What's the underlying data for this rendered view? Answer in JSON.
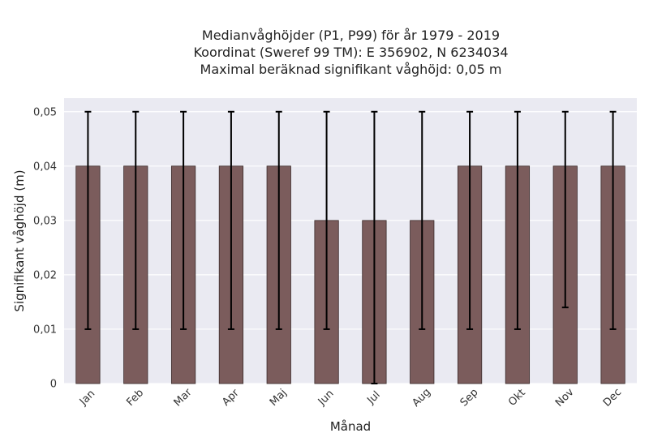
{
  "chart_data": {
    "type": "bar",
    "title_lines": [
      "Medianvåghöjder (P1, P99) för år 1979 - 2019",
      "Koordinat (Sweref 99 TM): E 356902, N 6234034",
      "Maximal beräknad signifikant våghöjd: 0,05 m"
    ],
    "xlabel": "Månad",
    "ylabel": "Signifikant våghöjd (m)",
    "categories": [
      "Jan",
      "Feb",
      "Mar",
      "Apr",
      "Maj",
      "Jun",
      "Jul",
      "Aug",
      "Sep",
      "Okt",
      "Nov",
      "Dec"
    ],
    "values": [
      0.04,
      0.04,
      0.04,
      0.04,
      0.04,
      0.03,
      0.03,
      0.03,
      0.04,
      0.04,
      0.04,
      0.04
    ],
    "error_low": [
      0.01,
      0.01,
      0.01,
      0.01,
      0.01,
      0.01,
      0.0,
      0.01,
      0.01,
      0.01,
      0.014,
      0.01
    ],
    "error_high": [
      0.05,
      0.05,
      0.05,
      0.05,
      0.05,
      0.05,
      0.05,
      0.05,
      0.05,
      0.05,
      0.05,
      0.05
    ],
    "ylim": [
      0,
      0.0525
    ],
    "yticks": [
      0,
      0.01,
      0.02,
      0.03,
      0.04,
      0.05
    ],
    "ytick_labels": [
      "0",
      "0,01",
      "0,02",
      "0,03",
      "0,04",
      "0,05"
    ],
    "grid": true,
    "colors": {
      "bar": "#7b5c5c",
      "bar_edge": "#3a2a2a",
      "error": "#000000",
      "plot_bg": "#eaeaf2",
      "grid": "#ffffff"
    }
  }
}
